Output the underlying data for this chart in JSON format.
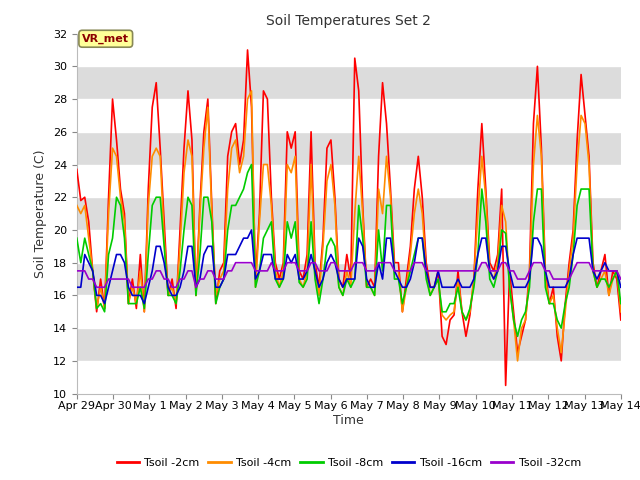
{
  "title": "Soil Temperatures Set 2",
  "xlabel": "Time",
  "ylabel": "Soil Temperature (C)",
  "ylim": [
    10,
    32
  ],
  "yticks": [
    10,
    12,
    14,
    16,
    18,
    20,
    22,
    24,
    26,
    28,
    30,
    32
  ],
  "annotation_text": "VR_met",
  "annotation_bg": "#ffff99",
  "annotation_border": "#8b0000",
  "series_colors": [
    "#ff0000",
    "#ff8c00",
    "#00cc00",
    "#0000cc",
    "#9900cc"
  ],
  "series_labels": [
    "Tsoil -2cm",
    "Tsoil -4cm",
    "Tsoil -8cm",
    "Tsoil -16cm",
    "Tsoil -32cm"
  ],
  "x_labels": [
    "Apr 29",
    "Apr 30",
    "May 1",
    "May 2",
    "May 3",
    "May 4",
    "May 5",
    "May 6",
    "May 7",
    "May 8",
    "May 9",
    "May 10",
    "May 11",
    "May 12",
    "May 13",
    "May 14"
  ],
  "tsoil_2cm": [
    23.7,
    21.8,
    22.0,
    20.5,
    17.5,
    15.0,
    17.0,
    15.2,
    22.0,
    28.0,
    25.5,
    22.5,
    21.0,
    15.5,
    17.0,
    15.2,
    18.5,
    15.0,
    22.5,
    27.5,
    29.0,
    25.0,
    20.5,
    16.0,
    17.0,
    15.2,
    20.0,
    25.0,
    28.5,
    25.5,
    16.0,
    21.5,
    26.0,
    28.0,
    21.5,
    15.5,
    17.5,
    18.0,
    24.5,
    26.0,
    26.5,
    24.0,
    25.5,
    31.0,
    27.5,
    17.0,
    21.0,
    28.5,
    28.0,
    22.0,
    18.0,
    17.0,
    18.0,
    26.0,
    25.0,
    26.0,
    17.5,
    17.0,
    18.5,
    26.0,
    18.0,
    16.5,
    19.5,
    25.0,
    25.5,
    22.0,
    17.0,
    16.5,
    18.5,
    17.0,
    30.5,
    28.5,
    21.5,
    16.5,
    17.0,
    16.5,
    24.5,
    29.0,
    26.5,
    22.5,
    18.0,
    18.0,
    15.0,
    17.0,
    19.0,
    22.5,
    24.5,
    22.0,
    18.0,
    16.5,
    16.5,
    17.5,
    13.5,
    13.0,
    14.5,
    14.8,
    17.5,
    15.0,
    13.5,
    14.8,
    17.0,
    22.5,
    26.5,
    22.5,
    18.0,
    17.5,
    18.5,
    22.5,
    10.5,
    17.5,
    15.0,
    12.5,
    13.5,
    14.5,
    17.5,
    26.5,
    30.0,
    25.0,
    17.5,
    15.5,
    16.5,
    13.5,
    12.0,
    15.5,
    18.0,
    20.0,
    25.5,
    29.5,
    27.0,
    24.5,
    18.0,
    16.5,
    17.5,
    18.5,
    16.0,
    17.5,
    17.0,
    14.5
  ],
  "tsoil_4cm": [
    21.5,
    21.0,
    21.5,
    19.5,
    17.5,
    15.2,
    16.5,
    15.2,
    21.0,
    25.0,
    24.5,
    22.0,
    20.5,
    15.5,
    16.5,
    15.5,
    17.5,
    15.0,
    21.5,
    24.5,
    25.0,
    24.5,
    19.5,
    16.0,
    16.5,
    15.5,
    19.0,
    23.5,
    25.5,
    24.5,
    16.0,
    21.0,
    25.0,
    27.5,
    21.0,
    16.0,
    17.0,
    17.5,
    22.5,
    25.0,
    25.5,
    23.5,
    24.5,
    28.0,
    28.5,
    16.5,
    20.5,
    24.0,
    24.0,
    21.5,
    17.5,
    16.5,
    17.5,
    24.0,
    23.5,
    24.5,
    17.0,
    16.5,
    17.5,
    24.0,
    17.5,
    16.0,
    19.0,
    23.0,
    24.0,
    21.5,
    16.5,
    16.0,
    17.5,
    16.5,
    21.0,
    24.5,
    21.0,
    16.5,
    16.5,
    16.0,
    22.5,
    21.0,
    24.5,
    22.0,
    17.5,
    17.5,
    15.0,
    16.5,
    18.5,
    21.0,
    22.5,
    21.0,
    17.5,
    16.0,
    16.5,
    17.0,
    14.8,
    14.5,
    14.8,
    15.0,
    17.0,
    15.0,
    14.5,
    15.0,
    17.0,
    21.0,
    24.5,
    22.0,
    17.5,
    17.0,
    18.0,
    21.5,
    20.5,
    16.5,
    14.5,
    12.0,
    14.0,
    14.5,
    17.0,
    24.0,
    27.0,
    24.5,
    17.0,
    15.5,
    16.0,
    14.0,
    12.5,
    15.0,
    17.5,
    19.5,
    24.0,
    27.0,
    26.5,
    24.0,
    17.5,
    16.5,
    17.0,
    17.5,
    16.0,
    17.0,
    17.5,
    15.0
  ],
  "tsoil_8cm": [
    19.5,
    18.0,
    19.5,
    18.5,
    17.5,
    15.2,
    15.5,
    15.0,
    18.5,
    19.5,
    22.0,
    21.5,
    19.5,
    15.5,
    15.5,
    15.5,
    16.5,
    15.2,
    18.5,
    21.5,
    22.0,
    22.0,
    19.0,
    16.0,
    16.0,
    15.5,
    17.5,
    20.0,
    22.0,
    21.5,
    16.0,
    18.5,
    22.0,
    22.0,
    20.5,
    15.5,
    16.5,
    17.0,
    20.0,
    21.5,
    21.5,
    22.0,
    22.5,
    23.5,
    24.0,
    16.5,
    17.5,
    19.5,
    20.0,
    20.5,
    17.0,
    16.5,
    17.0,
    20.5,
    19.5,
    20.5,
    16.8,
    16.5,
    17.0,
    20.5,
    17.0,
    15.5,
    17.0,
    19.0,
    19.5,
    19.0,
    16.5,
    16.0,
    17.0,
    16.5,
    17.0,
    21.5,
    19.5,
    16.5,
    16.5,
    16.0,
    20.0,
    17.5,
    21.5,
    21.5,
    17.0,
    17.0,
    15.5,
    16.5,
    17.5,
    18.5,
    19.5,
    19.5,
    17.0,
    16.0,
    16.5,
    17.0,
    15.0,
    15.0,
    15.5,
    15.5,
    16.5,
    15.0,
    14.5,
    15.2,
    16.5,
    18.5,
    22.5,
    20.5,
    17.0,
    16.5,
    17.5,
    20.0,
    19.8,
    16.5,
    14.5,
    13.5,
    14.5,
    15.0,
    16.5,
    20.5,
    22.5,
    22.5,
    16.5,
    15.5,
    15.5,
    14.5,
    14.0,
    15.5,
    16.5,
    18.5,
    21.5,
    22.5,
    22.5,
    22.5,
    17.5,
    16.5,
    17.0,
    17.0,
    16.5,
    17.0,
    17.5,
    15.5
  ],
  "tsoil_16cm": [
    16.5,
    16.5,
    18.5,
    18.0,
    17.5,
    16.0,
    16.0,
    15.5,
    16.5,
    17.5,
    18.5,
    18.5,
    18.0,
    16.5,
    16.0,
    16.0,
    16.0,
    15.5,
    16.5,
    17.5,
    19.0,
    19.0,
    18.0,
    16.5,
    16.0,
    16.0,
    16.5,
    17.5,
    19.0,
    19.0,
    16.5,
    17.0,
    18.5,
    19.0,
    19.0,
    16.5,
    16.5,
    17.0,
    18.5,
    18.5,
    18.5,
    19.0,
    19.5,
    19.5,
    20.0,
    17.0,
    17.5,
    18.5,
    18.5,
    18.5,
    17.0,
    17.0,
    17.0,
    18.5,
    18.0,
    18.5,
    17.0,
    17.0,
    17.5,
    18.5,
    17.5,
    16.5,
    17.0,
    18.0,
    18.5,
    18.0,
    17.0,
    16.5,
    17.0,
    17.0,
    17.0,
    19.5,
    19.0,
    17.0,
    16.5,
    16.5,
    18.0,
    17.0,
    19.5,
    19.5,
    17.5,
    17.0,
    16.5,
    16.5,
    17.0,
    18.0,
    19.5,
    19.5,
    17.5,
    16.5,
    16.5,
    17.5,
    16.5,
    16.5,
    16.5,
    16.5,
    17.0,
    16.5,
    16.5,
    16.5,
    17.0,
    18.5,
    19.5,
    19.5,
    17.5,
    17.0,
    17.5,
    19.0,
    19.0,
    17.5,
    16.5,
    16.5,
    16.5,
    16.5,
    17.0,
    19.5,
    19.5,
    19.0,
    17.5,
    16.5,
    16.5,
    16.5,
    16.5,
    16.5,
    17.0,
    18.5,
    19.5,
    19.5,
    19.5,
    19.5,
    17.5,
    17.0,
    17.5,
    18.0,
    17.5,
    17.5,
    17.5,
    16.5
  ],
  "tsoil_32cm": [
    17.5,
    17.5,
    17.5,
    17.0,
    17.0,
    16.5,
    16.5,
    16.5,
    17.0,
    17.0,
    17.0,
    17.0,
    17.0,
    17.0,
    16.5,
    16.5,
    16.5,
    16.5,
    17.0,
    17.0,
    17.5,
    17.5,
    17.0,
    17.0,
    16.5,
    16.5,
    17.0,
    17.0,
    17.5,
    17.5,
    16.5,
    17.0,
    17.0,
    17.5,
    17.5,
    17.0,
    17.0,
    17.0,
    17.5,
    17.5,
    18.0,
    18.0,
    18.0,
    18.0,
    18.0,
    17.5,
    17.5,
    17.5,
    17.5,
    18.0,
    17.5,
    17.5,
    17.5,
    18.0,
    18.0,
    18.0,
    17.5,
    17.5,
    17.5,
    18.0,
    18.0,
    17.5,
    17.5,
    17.5,
    18.0,
    18.0,
    17.5,
    17.5,
    17.5,
    17.5,
    18.0,
    18.0,
    18.0,
    17.5,
    17.5,
    17.5,
    18.0,
    18.0,
    18.0,
    18.0,
    17.5,
    17.5,
    17.5,
    17.5,
    17.5,
    18.0,
    18.0,
    18.0,
    17.5,
    17.5,
    17.5,
    17.5,
    17.5,
    17.5,
    17.5,
    17.5,
    17.5,
    17.5,
    17.5,
    17.5,
    17.5,
    17.5,
    18.0,
    18.0,
    17.5,
    17.5,
    17.5,
    18.0,
    18.0,
    17.5,
    17.5,
    17.0,
    17.0,
    17.0,
    17.5,
    18.0,
    18.0,
    18.0,
    17.5,
    17.5,
    17.0,
    17.0,
    17.0,
    17.0,
    17.0,
    17.5,
    18.0,
    18.0,
    18.0,
    18.0,
    17.5,
    17.5,
    17.5,
    17.5,
    17.5,
    17.5,
    17.5,
    17.0
  ]
}
